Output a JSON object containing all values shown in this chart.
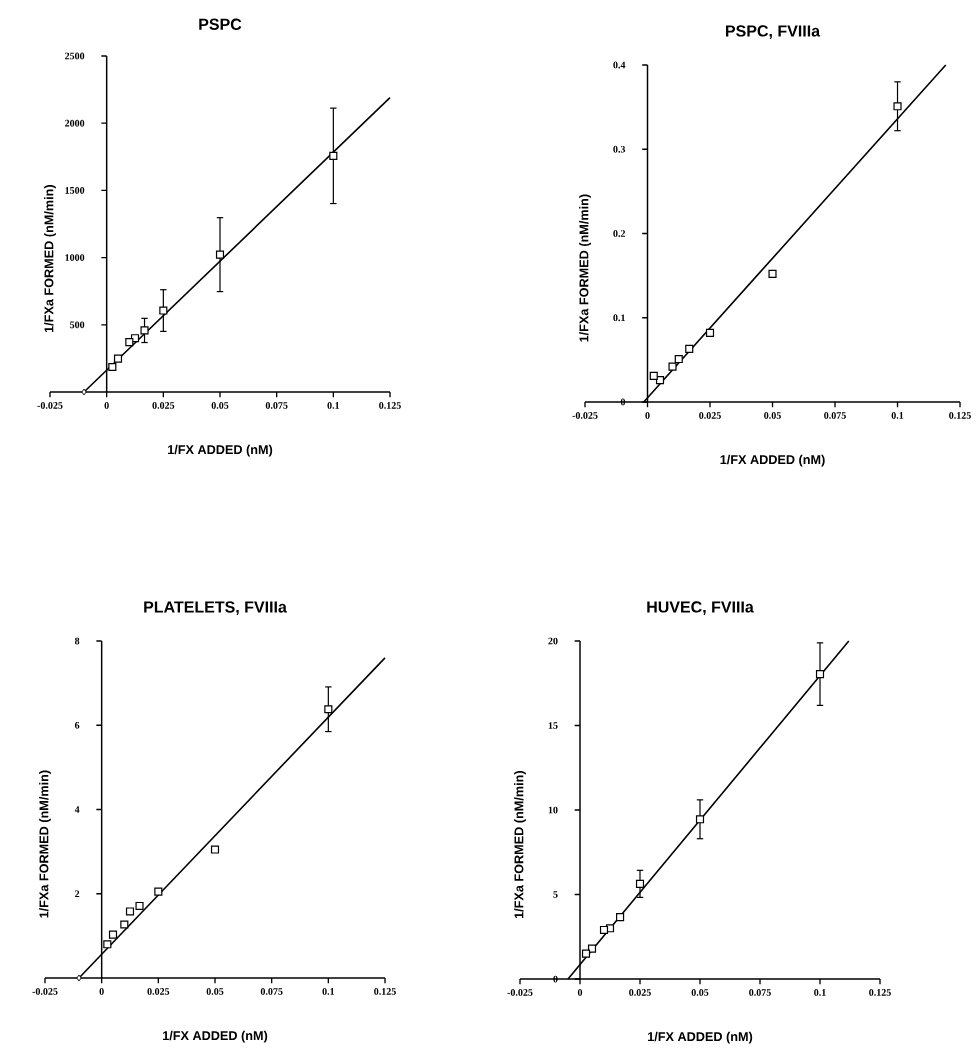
{
  "chart_data": [
    {
      "type": "scatter",
      "title": "PSPC",
      "xlabel": "1/FX  ADDED  (nM)",
      "ylabel": "1/FXa  FORMED  (nM/min)",
      "xlim": [
        -0.025,
        0.125
      ],
      "xticks": [
        -0.025,
        0,
        0.025,
        0.05,
        0.075,
        0.1,
        0.125
      ],
      "ylim": [
        0,
        2500
      ],
      "yticks": [
        500,
        1000,
        1500,
        2000,
        2500
      ],
      "series": [
        {
          "type": "line",
          "color": "#000000",
          "marker": "none",
          "x": [
            -0.01,
            0.125
          ],
          "values": [
            0,
            2190
          ]
        },
        {
          "color": "#000000",
          "marker": "square",
          "x": [
            0.1,
            0.05,
            0.025,
            0.0167,
            0.0125,
            0.01,
            0.005,
            0.0025
          ],
          "values": [
            1757,
            1022,
            606,
            458,
            400,
            371,
            248,
            186
          ],
          "errors": [
            355,
            275,
            155,
            90,
            null,
            null,
            null,
            null
          ]
        },
        {
          "color": "#000000",
          "marker": "diamond",
          "x": [
            -0.01
          ],
          "values": [
            0
          ]
        }
      ]
    },
    {
      "type": "scatter",
      "title": "PSPC,  FVIIIa",
      "xlabel": "1/FX  ADDED  (nM)",
      "ylabel": "1/FXa  FORMED  (nM/min)",
      "xlim": [
        -0.025,
        0.125
      ],
      "xticks": [
        -0.025,
        0,
        0.025,
        0.05,
        0.075,
        0.1,
        0.125
      ],
      "ylim": [
        0,
        0.4
      ],
      "yticks": [
        0,
        0.1,
        0.2,
        0.3,
        0.4
      ],
      "series": [
        {
          "type": "line",
          "color": "#000000",
          "marker": "none",
          "x": [
            -0.0015,
            0.1193
          ],
          "values": [
            0,
            0.4
          ]
        },
        {
          "color": "#000000",
          "marker": "square",
          "x": [
            0.1,
            0.05,
            0.025,
            0.0167,
            0.0125,
            0.01,
            0.005,
            0.0025
          ],
          "values": [
            0.351,
            0.152,
            0.082,
            0.063,
            0.051,
            0.042,
            0.026,
            0.031
          ],
          "errors": [
            0.029,
            null,
            null,
            null,
            null,
            null,
            null,
            null
          ]
        }
      ]
    },
    {
      "type": "scatter",
      "title": "PLATELETS,  FVIIIa",
      "xlabel": "1/FX  ADDED  (nM)",
      "ylabel": "1/FXa  FORMED  (nM/min)",
      "xlim": [
        -0.025,
        0.125
      ],
      "xticks": [
        -0.025,
        0,
        0.025,
        0.05,
        0.075,
        0.1,
        0.125
      ],
      "ylim": [
        0,
        8
      ],
      "yticks": [
        2,
        4,
        6,
        8
      ],
      "series": [
        {
          "type": "line",
          "color": "#000000",
          "marker": "none",
          "x": [
            -0.01,
            0.125
          ],
          "values": [
            0,
            7.6
          ]
        },
        {
          "color": "#000000",
          "marker": "square",
          "x": [
            0.1,
            0.05,
            0.025,
            0.0167,
            0.0125,
            0.01,
            0.005,
            0.0025
          ],
          "values": [
            6.38,
            3.05,
            2.05,
            1.71,
            1.58,
            1.27,
            1.03,
            0.8
          ],
          "errors": [
            0.53,
            null,
            null,
            null,
            null,
            null,
            null,
            null
          ]
        },
        {
          "color": "#000000",
          "marker": "diamond",
          "x": [
            -0.01
          ],
          "values": [
            0
          ]
        }
      ]
    },
    {
      "type": "scatter",
      "title": "HUVEC,  FVIIIa",
      "xlabel": "1/FX  ADDED  (nM)",
      "ylabel": "1/FXa  FORMED  (nM/min)",
      "xlim": [
        -0.025,
        0.125
      ],
      "xticks": [
        -0.025,
        0,
        0.025,
        0.05,
        0.075,
        0.1,
        0.125
      ],
      "ylim": [
        0,
        20
      ],
      "yticks": [
        0,
        5,
        10,
        15,
        20
      ],
      "series": [
        {
          "type": "line",
          "color": "#000000",
          "marker": "none",
          "x": [
            -0.005,
            0.112
          ],
          "values": [
            0,
            20
          ]
        },
        {
          "color": "#000000",
          "marker": "square",
          "x": [
            0.1,
            0.05,
            0.025,
            0.0167,
            0.0125,
            0.01,
            0.005,
            0.0025
          ],
          "values": [
            18.04,
            9.45,
            5.63,
            3.66,
            3.0,
            2.9,
            1.8,
            1.5
          ],
          "errors": [
            1.85,
            1.15,
            0.8,
            null,
            null,
            null,
            null,
            null
          ]
        }
      ]
    }
  ]
}
